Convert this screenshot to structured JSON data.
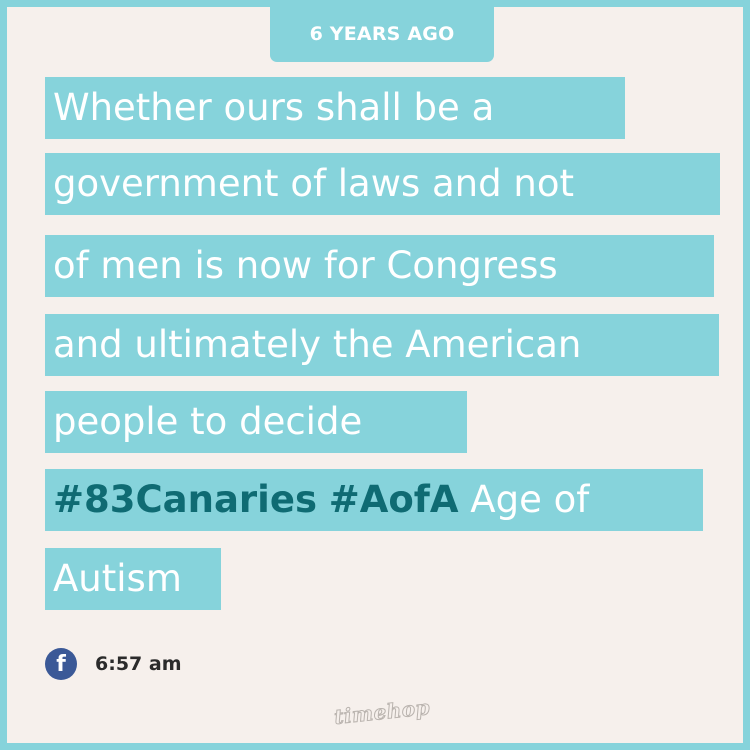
{
  "header": {
    "label": "6 YEARS AGO"
  },
  "post": {
    "lines": [
      "Whether ours shall be a",
      "government of laws and not",
      "of men is now for Congress",
      "and ultimately the American",
      "people to decide"
    ],
    "hashtag_line": {
      "hashtag_1": "#83Canaries",
      "hashtag_2": "#AofA",
      "rest": "Age of"
    },
    "last_line": "Autism"
  },
  "meta": {
    "source_icon": "facebook-icon",
    "source_icon_glyph": "f",
    "time": "6:57 am"
  },
  "brand": {
    "logo_text": "timehop"
  },
  "colors": {
    "accent": "#86d3db",
    "background": "#f6f0ec",
    "hashtag": "#0f6b73",
    "facebook": "#3b5997"
  }
}
